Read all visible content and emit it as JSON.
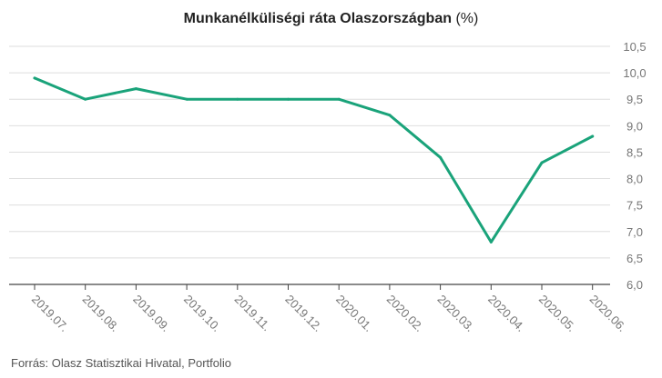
{
  "title": {
    "main": "Munkanélküliségi ráta Olaszországban",
    "unit": "(%)"
  },
  "source": "Forrás: Olasz Statisztikai Hivatal, Portfolio",
  "colors": {
    "line": "#1aa37a",
    "grid": "#dedede",
    "axis": "#444444",
    "tick_text": "#777777"
  },
  "chart_data": {
    "type": "line",
    "title": "Munkanélküliségi ráta Olaszországban (%)",
    "categories": [
      "2019.07.",
      "2019.08.",
      "2019.09.",
      "2019.10.",
      "2019.11.",
      "2019.12.",
      "2020.01.",
      "2020.02.",
      "2020.03.",
      "2020.04.",
      "2020.05.",
      "2020.06."
    ],
    "series": [
      {
        "values": [
          9.9,
          9.5,
          9.7,
          9.5,
          9.5,
          9.5,
          9.5,
          9.2,
          8.4,
          6.8,
          8.3,
          8.8
        ]
      }
    ],
    "yticks": [
      "6,0",
      "6,5",
      "7,0",
      "7,5",
      "8,0",
      "8,5",
      "9,0",
      "9,5",
      "10,0",
      "10,5"
    ],
    "ylim": [
      6.0,
      10.5
    ],
    "y_axis_position": "right",
    "grid": true,
    "legend": "none"
  }
}
